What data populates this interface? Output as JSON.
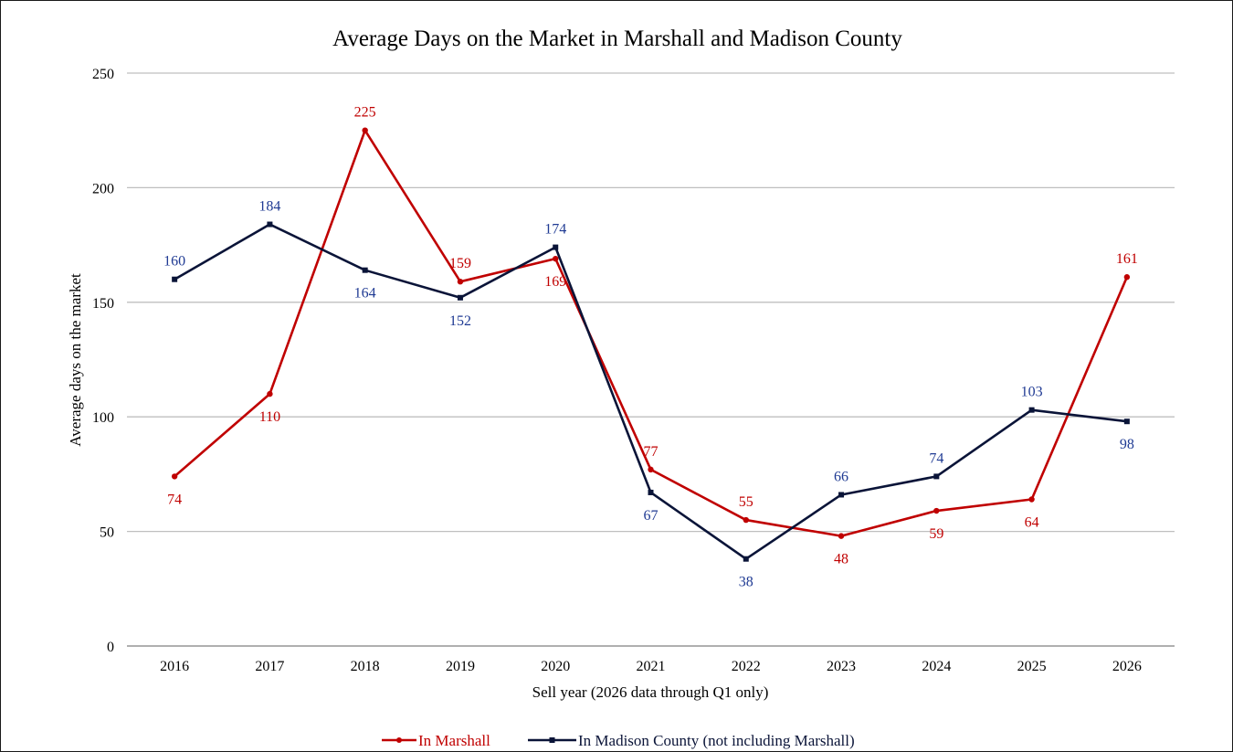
{
  "chart_data": {
    "type": "line",
    "title": "Average Days on the Market in Marshall and Madison County",
    "xlabel": "Sell year (2026 data through Q1 only)",
    "ylabel": "Average days on the market",
    "ylim": [
      0,
      250
    ],
    "yticks": [
      0,
      50,
      100,
      150,
      200,
      250
    ],
    "grid": true,
    "legend_position": "bottom",
    "categories": [
      "2016",
      "2017",
      "2018",
      "2019",
      "2020",
      "2021",
      "2022",
      "2023",
      "2024",
      "2025",
      "2026"
    ],
    "series": [
      {
        "name": "In Marshall",
        "color": "#c00000",
        "marker": "diamond",
        "values": [
          74,
          110,
          225,
          159,
          169,
          77,
          55,
          48,
          59,
          64,
          161
        ],
        "label_pos": [
          "below",
          "below",
          "above",
          "above",
          "below",
          "above",
          "above",
          "below",
          "below",
          "below",
          "above"
        ]
      },
      {
        "name": "In Madison County (not including Marshall)",
        "color": "#0a1438",
        "label_color": "#1f3a93",
        "marker": "square",
        "values": [
          160,
          184,
          164,
          152,
          174,
          67,
          38,
          66,
          74,
          103,
          98
        ],
        "label_pos": [
          "above",
          "above",
          "below",
          "below",
          "above",
          "below",
          "below",
          "above",
          "above",
          "above",
          "below"
        ]
      }
    ]
  }
}
